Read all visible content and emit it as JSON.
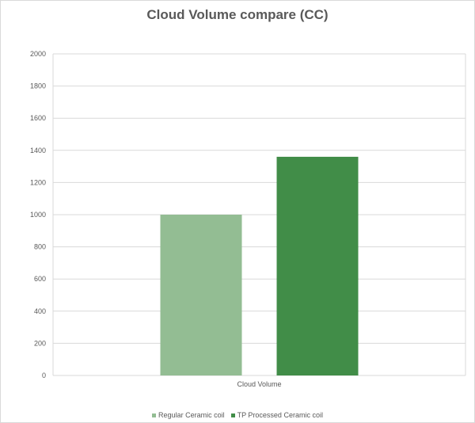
{
  "chart_data": {
    "type": "bar",
    "title": "Cloud Volume compare (CC)",
    "categories": [
      "Cloud Volume"
    ],
    "series": [
      {
        "name": "Regular Ceramic coil",
        "values": [
          1000
        ],
        "color": "#93bd93"
      },
      {
        "name": "TP Processed Ceramic coil",
        "values": [
          1360
        ],
        "color": "#418d48"
      }
    ],
    "y_ticks": [
      "0",
      "200",
      "400",
      "600",
      "800",
      "1000",
      "1200",
      "1400",
      "1600",
      "1800",
      "2000"
    ],
    "ylim": [
      0,
      2000
    ],
    "grid": true,
    "legend_position": "bottom"
  }
}
